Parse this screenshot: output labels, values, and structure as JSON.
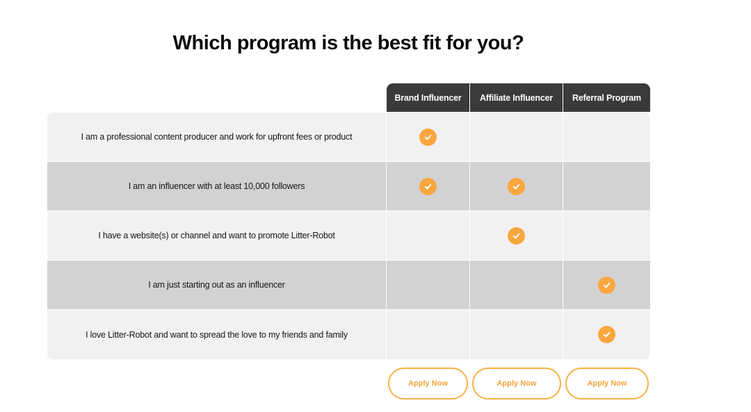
{
  "title": "Which program is the best fit for you?",
  "columns": [
    "Brand Influencer",
    "Affiliate Influencer",
    "Referral Program"
  ],
  "rows": [
    {
      "label": "I am a professional content producer and work for upfront fees or product",
      "checks": [
        true,
        false,
        false
      ]
    },
    {
      "label": "I am an influencer with at least 10,000 followers",
      "checks": [
        true,
        true,
        false
      ]
    },
    {
      "label": "I have a website(s) or channel and want to promote Litter-Robot",
      "checks": [
        false,
        true,
        false
      ]
    },
    {
      "label": "I am just starting out as an influencer",
      "checks": [
        false,
        false,
        true
      ]
    },
    {
      "label": "I love Litter-Robot and want to spread the love to my friends and family",
      "checks": [
        false,
        false,
        true
      ]
    }
  ],
  "buttons": [
    "Apply Now",
    "Apply Now",
    "Apply Now"
  ],
  "colors": {
    "accent": "#f9a73e",
    "header_bg": "#3a3a3a",
    "row_light": "#f1f1f1",
    "row_dark": "#d2d2d2"
  },
  "icons": {
    "check": "check-circle-icon"
  }
}
